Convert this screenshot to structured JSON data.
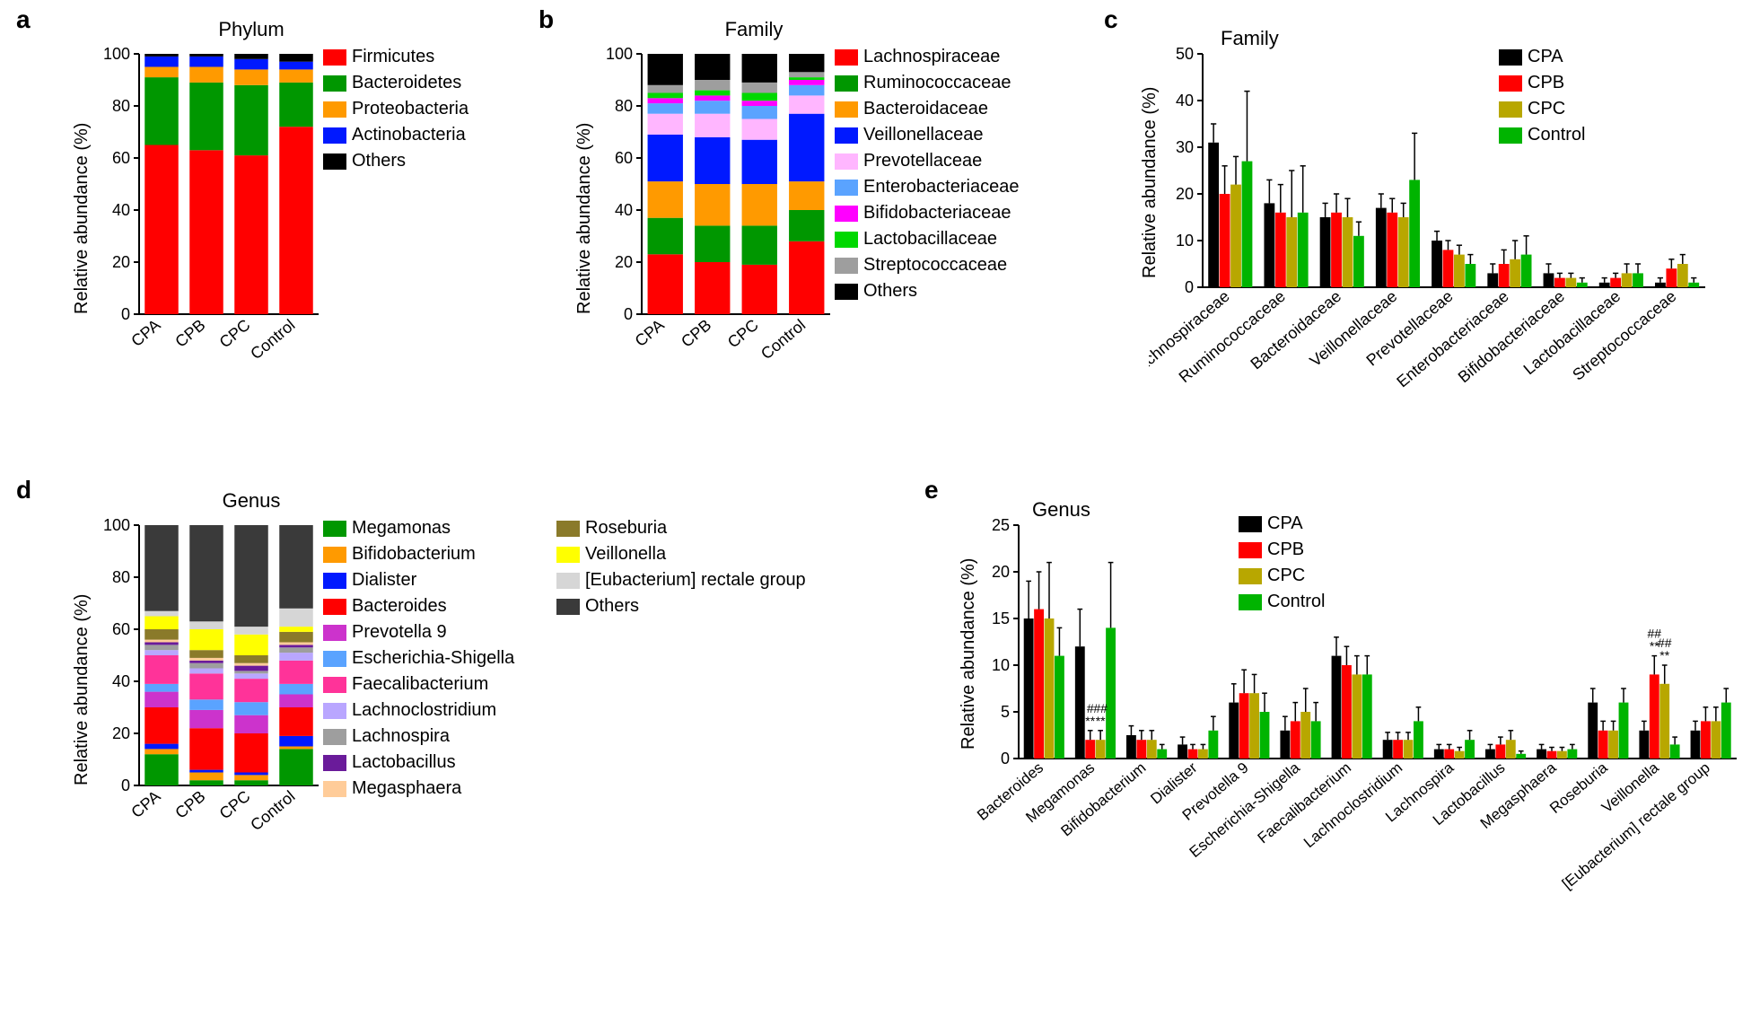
{
  "panels": {
    "a": "a",
    "b": "b",
    "c": "c",
    "d": "d",
    "e": "e"
  },
  "groups": [
    "CPA",
    "CPB",
    "CPC",
    "Control"
  ],
  "group_colors": {
    "CPA": "#000000",
    "CPB": "#ff0000",
    "CPC": "#b8a700",
    "Control": "#00b400"
  },
  "panelA": {
    "type": "stacked-bar",
    "title": "Phylum",
    "ylabel": "Relative abundance (%)",
    "ylim": [
      0,
      100
    ],
    "ytick_step": 20,
    "categories": [
      "CPA",
      "CPB",
      "CPC",
      "Control"
    ],
    "series": [
      "Firmicutes",
      "Bacteroidetes",
      "Proteobacteria",
      "Actinobacteria",
      "Others"
    ],
    "series_colors": {
      "Firmicutes": "#ff0000",
      "Bacteroidetes": "#009700",
      "Proteobacteria": "#ff9a00",
      "Actinobacteria": "#0019ff",
      "Others": "#000000"
    },
    "values": {
      "CPA": {
        "Firmicutes": 65,
        "Bacteroidetes": 26,
        "Proteobacteria": 4,
        "Actinobacteria": 4,
        "Others": 1
      },
      "CPB": {
        "Firmicutes": 63,
        "Bacteroidetes": 26,
        "Proteobacteria": 6,
        "Actinobacteria": 4,
        "Others": 1
      },
      "CPC": {
        "Firmicutes": 61,
        "Bacteroidetes": 27,
        "Proteobacteria": 6,
        "Actinobacteria": 4,
        "Others": 2
      },
      "Control": {
        "Firmicutes": 72,
        "Bacteroidetes": 17,
        "Proteobacteria": 5,
        "Actinobacteria": 3,
        "Others": 3
      }
    },
    "bar_width": 0.75,
    "axis_color": "#000000",
    "text_color": "#000000",
    "background": "#ffffff"
  },
  "panelB": {
    "type": "stacked-bar",
    "title": "Family",
    "ylabel": "Relative abundance (%)",
    "ylim": [
      0,
      100
    ],
    "ytick_step": 20,
    "categories": [
      "CPA",
      "CPB",
      "CPC",
      "Control"
    ],
    "series": [
      "Lachnospiraceae",
      "Ruminococcaceae",
      "Bacteroidaceae",
      "Veillonellaceae",
      "Prevotellaceae",
      "Enterobacteriaceae",
      "Bifidobacteriaceae",
      "Lactobacillaceae",
      "Streptococcaceae",
      "Others"
    ],
    "series_colors": {
      "Lachnospiraceae": "#ff0000",
      "Ruminococcaceae": "#009700",
      "Bacteroidaceae": "#ff9a00",
      "Veillonellaceae": "#0019ff",
      "Prevotellaceae": "#ffb6ff",
      "Enterobacteriaceae": "#5aa3ff",
      "Bifidobacteriaceae": "#ff00ff",
      "Lactobacillaceae": "#00d800",
      "Streptococcaceae": "#9e9e9e",
      "Others": "#000000"
    },
    "values": {
      "CPA": {
        "Lachnospiraceae": 23,
        "Ruminococcaceae": 14,
        "Bacteroidaceae": 14,
        "Veillonellaceae": 18,
        "Prevotellaceae": 8,
        "Enterobacteriaceae": 4,
        "Bifidobacteriaceae": 2,
        "Lactobacillaceae": 2,
        "Streptococcaceae": 3,
        "Others": 12
      },
      "CPB": {
        "Lachnospiraceae": 20,
        "Ruminococcaceae": 14,
        "Bacteroidaceae": 16,
        "Veillonellaceae": 18,
        "Prevotellaceae": 9,
        "Enterobacteriaceae": 5,
        "Bifidobacteriaceae": 2,
        "Lactobacillaceae": 2,
        "Streptococcaceae": 4,
        "Others": 10
      },
      "CPC": {
        "Lachnospiraceae": 19,
        "Ruminococcaceae": 15,
        "Bacteroidaceae": 16,
        "Veillonellaceae": 17,
        "Prevotellaceae": 8,
        "Enterobacteriaceae": 5,
        "Bifidobacteriaceae": 2,
        "Lactobacillaceae": 3,
        "Streptococcaceae": 4,
        "Others": 11
      },
      "Control": {
        "Lachnospiraceae": 28,
        "Ruminococcaceae": 12,
        "Bacteroidaceae": 11,
        "Veillonellaceae": 26,
        "Prevotellaceae": 7,
        "Enterobacteriaceae": 4,
        "Bifidobacteriaceae": 2,
        "Lactobacillaceae": 1,
        "Streptococcaceae": 2,
        "Others": 7
      }
    },
    "bar_width": 0.75,
    "axis_color": "#000000",
    "text_color": "#000000",
    "background": "#ffffff"
  },
  "panelC": {
    "type": "grouped-bar-err",
    "title": "Family",
    "ylabel": "Relative abundance (%)",
    "ylim": [
      0,
      50
    ],
    "ytick_step": 10,
    "categories": [
      "Lachnospiraceae",
      "Ruminococcaceae",
      "Bacteroidaceae",
      "Veillonellaceae",
      "Prevotellaceae",
      "Enterobacteriaceae",
      "Bifidobacteriaceae",
      "Lactobacillaceae",
      "Streptococcaceae"
    ],
    "groups": [
      "CPA",
      "CPB",
      "CPC",
      "Control"
    ],
    "values": {
      "Lachnospiraceae": {
        "CPA": [
          31,
          4
        ],
        "CPB": [
          20,
          6
        ],
        "CPC": [
          22,
          6
        ],
        "Control": [
          27,
          15
        ]
      },
      "Ruminococcaceae": {
        "CPA": [
          18,
          5
        ],
        "CPB": [
          16,
          6
        ],
        "CPC": [
          15,
          10
        ],
        "Control": [
          16,
          10
        ]
      },
      "Bacteroidaceae": {
        "CPA": [
          15,
          3
        ],
        "CPB": [
          16,
          4
        ],
        "CPC": [
          15,
          4
        ],
        "Control": [
          11,
          3
        ]
      },
      "Veillonellaceae": {
        "CPA": [
          17,
          3
        ],
        "CPB": [
          16,
          3
        ],
        "CPC": [
          15,
          3
        ],
        "Control": [
          23,
          10
        ]
      },
      "Prevotellaceae": {
        "CPA": [
          10,
          2
        ],
        "CPB": [
          8,
          2
        ],
        "CPC": [
          7,
          2
        ],
        "Control": [
          5,
          2
        ]
      },
      "Enterobacteriaceae": {
        "CPA": [
          3,
          2
        ],
        "CPB": [
          5,
          3
        ],
        "CPC": [
          6,
          4
        ],
        "Control": [
          7,
          4
        ]
      },
      "Bifidobacteriaceae": {
        "CPA": [
          3,
          2
        ],
        "CPB": [
          2,
          1
        ],
        "CPC": [
          2,
          1
        ],
        "Control": [
          1,
          1
        ]
      },
      "Lactobacillaceae": {
        "CPA": [
          1,
          1
        ],
        "CPB": [
          2,
          1
        ],
        "CPC": [
          3,
          2
        ],
        "Control": [
          3,
          2
        ]
      },
      "Streptococcaceae": {
        "CPA": [
          1,
          1
        ],
        "CPB": [
          4,
          2
        ],
        "CPC": [
          5,
          2
        ],
        "Control": [
          1,
          1
        ]
      }
    },
    "bar_width": 0.8,
    "axis_color": "#000000",
    "background": "#ffffff"
  },
  "panelD": {
    "type": "stacked-bar",
    "title": "Genus",
    "ylabel": "Relative abundance (%)",
    "ylim": [
      0,
      100
    ],
    "ytick_step": 20,
    "categories": [
      "CPA",
      "CPB",
      "CPC",
      "Control"
    ],
    "series": [
      "Megamonas",
      "Bifidobacterium",
      "Dialister",
      "Bacteroides",
      "Prevotella 9",
      "Escherichia-Shigella",
      "Faecalibacterium",
      "Lachnoclostridium",
      "Lachnospira",
      "Lactobacillus",
      "Megasphaera",
      "Roseburia",
      "Veillonella",
      "[Eubacterium] rectale group",
      "Others"
    ],
    "series_colors": {
      "Megamonas": "#009700",
      "Bifidobacterium": "#ff9a00",
      "Dialister": "#0019ff",
      "Bacteroides": "#ff0000",
      "Prevotella 9": "#cc33cc",
      "Escherichia-Shigella": "#5aa3ff",
      "Faecalibacterium": "#ff3399",
      "Lachnoclostridium": "#b9a6ff",
      "Lachnospira": "#9e9e9e",
      "Lactobacillus": "#6a1b9a",
      "Megasphaera": "#ffcc99",
      "Roseburia": "#8a7a2a",
      "Veillonella": "#ffff00",
      "[Eubacterium] rectale group": "#d6d6d6",
      "Others": "#3a3a3a"
    },
    "values": {
      "CPA": {
        "Megamonas": 12,
        "Bifidobacterium": 2,
        "Dialister": 2,
        "Bacteroides": 14,
        "Prevotella 9": 6,
        "Escherichia-Shigella": 3,
        "Faecalibacterium": 11,
        "Lachnoclostridium": 2,
        "Lachnospira": 2,
        "Lactobacillus": 1,
        "Megasphaera": 1,
        "Roseburia": 4,
        "Veillonella": 5,
        "[Eubacterium] rectale group": 2,
        "Others": 33
      },
      "CPB": {
        "Megamonas": 2,
        "Bifidobacterium": 3,
        "Dialister": 1,
        "Bacteroides": 16,
        "Prevotella 9": 7,
        "Escherichia-Shigella": 4,
        "Faecalibacterium": 10,
        "Lachnoclostridium": 2,
        "Lachnospira": 2,
        "Lactobacillus": 1,
        "Megasphaera": 1,
        "Roseburia": 3,
        "Veillonella": 8,
        "[Eubacterium] rectale group": 3,
        "Others": 37
      },
      "CPC": {
        "Megamonas": 2,
        "Bifidobacterium": 2,
        "Dialister": 1,
        "Bacteroides": 15,
        "Prevotella 9": 7,
        "Escherichia-Shigella": 5,
        "Faecalibacterium": 9,
        "Lachnoclostridium": 2,
        "Lachnospira": 1,
        "Lactobacillus": 2,
        "Megasphaera": 1,
        "Roseburia": 3,
        "Veillonella": 8,
        "[Eubacterium] rectale group": 3,
        "Others": 39
      },
      "Control": {
        "Megamonas": 14,
        "Bifidobacterium": 1,
        "Dialister": 4,
        "Bacteroides": 11,
        "Prevotella 9": 5,
        "Escherichia-Shigella": 4,
        "Faecalibacterium": 9,
        "Lachnoclostridium": 3,
        "Lachnospira": 2,
        "Lactobacillus": 1,
        "Megasphaera": 1,
        "Roseburia": 4,
        "Veillonella": 2,
        "[Eubacterium] rectale group": 7,
        "Others": 32
      }
    },
    "bar_width": 0.75,
    "axis_color": "#000000",
    "background": "#ffffff"
  },
  "panelE": {
    "type": "grouped-bar-err",
    "title": "Genus",
    "ylabel": "Relative abundance (%)",
    "ylim": [
      0,
      25
    ],
    "ytick_step": 5,
    "categories": [
      "Bacteroides",
      "Megamonas",
      "Bifidobacterium",
      "Dialister",
      "Prevotella 9",
      "Escherichia-Shigella",
      "Faecalibacterium",
      "Lachnoclostridium",
      "Lachnospira",
      "Lactobacillus",
      "Megasphaera",
      "Roseburia",
      "Veillonella",
      "[Eubacterium] rectale group"
    ],
    "groups": [
      "CPA",
      "CPB",
      "CPC",
      "Control"
    ],
    "values": {
      "Bacteroides": {
        "CPA": [
          15,
          4
        ],
        "CPB": [
          16,
          4
        ],
        "CPC": [
          15,
          6
        ],
        "Control": [
          11,
          3
        ]
      },
      "Megamonas": {
        "CPA": [
          12,
          4
        ],
        "CPB": [
          2,
          1
        ],
        "CPC": [
          2,
          1
        ],
        "Control": [
          14,
          7
        ]
      },
      "Bifidobacterium": {
        "CPA": [
          2.5,
          1
        ],
        "CPB": [
          2,
          1
        ],
        "CPC": [
          2,
          1
        ],
        "Control": [
          1,
          0.5
        ]
      },
      "Dialister": {
        "CPA": [
          1.5,
          0.8
        ],
        "CPB": [
          1,
          0.5
        ],
        "CPC": [
          1,
          0.5
        ],
        "Control": [
          3,
          1.5
        ]
      },
      "Prevotella 9": {
        "CPA": [
          6,
          2
        ],
        "CPB": [
          7,
          2.5
        ],
        "CPC": [
          7,
          2
        ],
        "Control": [
          5,
          2
        ]
      },
      "Escherichia-Shigella": {
        "CPA": [
          3,
          1.5
        ],
        "CPB": [
          4,
          2
        ],
        "CPC": [
          5,
          2.5
        ],
        "Control": [
          4,
          2
        ]
      },
      "Faecalibacterium": {
        "CPA": [
          11,
          2
        ],
        "CPB": [
          10,
          2
        ],
        "CPC": [
          9,
          2
        ],
        "Control": [
          9,
          2
        ]
      },
      "Lachnoclostridium": {
        "CPA": [
          2,
          0.8
        ],
        "CPB": [
          2,
          0.8
        ],
        "CPC": [
          2,
          0.8
        ],
        "Control": [
          4,
          1.5
        ]
      },
      "Lachnospira": {
        "CPA": [
          1,
          0.5
        ],
        "CPB": [
          1,
          0.5
        ],
        "CPC": [
          0.8,
          0.4
        ],
        "Control": [
          2,
          1
        ]
      },
      "Lactobacillus": {
        "CPA": [
          1,
          0.5
        ],
        "CPB": [
          1.5,
          0.8
        ],
        "CPC": [
          2,
          1
        ],
        "Control": [
          0.5,
          0.3
        ]
      },
      "Megasphaera": {
        "CPA": [
          1,
          0.5
        ],
        "CPB": [
          0.8,
          0.4
        ],
        "CPC": [
          0.8,
          0.4
        ],
        "Control": [
          1,
          0.5
        ]
      },
      "Roseburia": {
        "CPA": [
          6,
          1.5
        ],
        "CPB": [
          3,
          1
        ],
        "CPC": [
          3,
          1
        ],
        "Control": [
          6,
          1.5
        ]
      },
      "Veillonella": {
        "CPA": [
          3,
          1
        ],
        "CPB": [
          9,
          2
        ],
        "CPC": [
          8,
          2
        ],
        "Control": [
          1.5,
          0.8
        ]
      },
      "[Eubacterium] rectale group": {
        "CPA": [
          3,
          1
        ],
        "CPB": [
          4,
          1.5
        ],
        "CPC": [
          4,
          1.5
        ],
        "Control": [
          6,
          1.5
        ]
      }
    },
    "annotations": [
      {
        "cat": "Megamonas",
        "grp": "CPB",
        "text": "#\n**",
        "dy": -4
      },
      {
        "cat": "Megamonas",
        "grp": "CPC",
        "text": "##\n**",
        "dy": -4
      },
      {
        "cat": "Veillonella",
        "grp": "CPB",
        "text": "##\n**",
        "dy": -4
      },
      {
        "cat": "Veillonella",
        "grp": "CPC",
        "text": "##\n**",
        "dy": -4
      }
    ],
    "bar_width": 0.8,
    "axis_color": "#000000",
    "background": "#ffffff"
  }
}
